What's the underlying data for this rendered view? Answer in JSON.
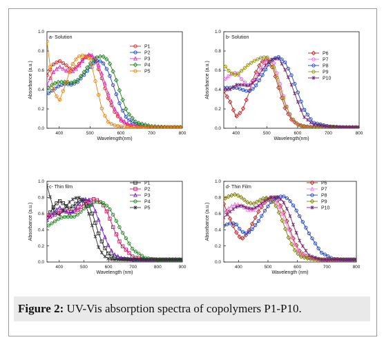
{
  "caption": {
    "label": "Figure 2:",
    "text": " UV-Vis absorption spectra of copolymers P1-P10."
  },
  "chart_data": [
    {
      "type": "line",
      "title": "a- Solution",
      "xlabel": "Wavelength(nm)",
      "ylabel": "Absorbance (a.u.)",
      "xlim": [
        360,
        800
      ],
      "ylim": [
        0,
        1.0
      ],
      "xticks": [
        "400",
        "500",
        "600",
        "700",
        "800"
      ],
      "yticks": [
        "0.0",
        "0.2",
        "0.4",
        "0.6",
        "0.8",
        "1.0"
      ],
      "series": [
        {
          "name": "P1",
          "color": "#d42020",
          "marker": "circle",
          "x": [
            360,
            380,
            400,
            420,
            440,
            460,
            480,
            500,
            520,
            540,
            560,
            580,
            600,
            620,
            650,
            700,
            750,
            800
          ],
          "y": [
            0.55,
            0.66,
            0.7,
            0.66,
            0.6,
            0.65,
            0.73,
            0.76,
            0.68,
            0.5,
            0.3,
            0.17,
            0.08,
            0.04,
            0.02,
            0.01,
            0.01,
            0.01
          ]
        },
        {
          "name": "P2",
          "color": "#1a3fc0",
          "marker": "circle",
          "x": [
            360,
            380,
            400,
            420,
            440,
            460,
            480,
            500,
            520,
            540,
            560,
            580,
            600,
            620,
            650,
            700,
            750,
            800
          ],
          "y": [
            0.35,
            0.4,
            0.44,
            0.46,
            0.45,
            0.48,
            0.55,
            0.63,
            0.7,
            0.69,
            0.58,
            0.4,
            0.22,
            0.1,
            0.04,
            0.01,
            0.01,
            0.01
          ]
        },
        {
          "name": "P3",
          "color": "#e030c0",
          "marker": "triangle",
          "x": [
            360,
            380,
            400,
            420,
            440,
            460,
            480,
            500,
            520,
            540,
            560,
            580,
            600,
            620,
            650,
            700,
            750,
            800
          ],
          "y": [
            0.45,
            0.58,
            0.64,
            0.6,
            0.58,
            0.63,
            0.72,
            0.77,
            0.72,
            0.55,
            0.35,
            0.2,
            0.1,
            0.05,
            0.02,
            0.01,
            0.01,
            0.01
          ]
        },
        {
          "name": "P4",
          "color": "#208020",
          "marker": "diamond",
          "x": [
            360,
            380,
            400,
            420,
            440,
            460,
            480,
            500,
            520,
            540,
            560,
            580,
            600,
            620,
            650,
            700,
            750,
            800
          ],
          "y": [
            0.4,
            0.46,
            0.48,
            0.48,
            0.47,
            0.5,
            0.58,
            0.67,
            0.73,
            0.75,
            0.7,
            0.55,
            0.35,
            0.17,
            0.06,
            0.02,
            0.01,
            0.01
          ]
        },
        {
          "name": "P5",
          "color": "#f08000",
          "marker": "circle",
          "x": [
            360,
            380,
            400,
            420,
            440,
            460,
            480,
            500,
            520,
            540,
            560,
            580,
            600,
            620,
            650,
            700,
            750,
            800
          ],
          "y": [
            0.9,
            0.4,
            0.28,
            0.45,
            0.65,
            0.74,
            0.76,
            0.72,
            0.45,
            0.18,
            0.06,
            0.03,
            0.02,
            0.01,
            0.01,
            0.01,
            0.01,
            0.01
          ]
        }
      ]
    },
    {
      "type": "line",
      "title": "b- Solution",
      "xlabel": "Wavelength(nm)",
      "ylabel": "Absorbance (a.u.)",
      "xlim": [
        360,
        800
      ],
      "ylim": [
        0,
        1.0
      ],
      "xticks": [
        "400",
        "500",
        "600",
        "700",
        "800"
      ],
      "yticks": [
        "0.0",
        "0.2",
        "0.4",
        "0.6",
        "0.8",
        "1.0"
      ],
      "series": [
        {
          "name": "P6",
          "color": "#c02020",
          "marker": "diamond",
          "x": [
            360,
            380,
            400,
            420,
            440,
            460,
            480,
            500,
            520,
            540,
            560,
            580,
            600,
            620,
            650,
            700,
            750,
            800
          ],
          "y": [
            0.38,
            0.28,
            0.12,
            0.18,
            0.35,
            0.55,
            0.68,
            0.72,
            0.62,
            0.4,
            0.2,
            0.09,
            0.04,
            0.02,
            0.01,
            0.01,
            0.01,
            0.01
          ]
        },
        {
          "name": "P7",
          "color": "#f060e0",
          "marker": "circle",
          "x": [
            360,
            380,
            400,
            420,
            440,
            460,
            480,
            500,
            520,
            540,
            560,
            580,
            600,
            620,
            650,
            700,
            750,
            800
          ],
          "y": [
            0.5,
            0.55,
            0.58,
            0.5,
            0.44,
            0.5,
            0.62,
            0.72,
            0.7,
            0.5,
            0.26,
            0.1,
            0.04,
            0.02,
            0.01,
            0.01,
            0.01,
            0.01
          ]
        },
        {
          "name": "P8",
          "color": "#1a3fc0",
          "marker": "circle",
          "x": [
            360,
            380,
            400,
            420,
            440,
            460,
            480,
            500,
            520,
            540,
            560,
            580,
            600,
            620,
            650,
            700,
            750,
            800
          ],
          "y": [
            0.42,
            0.42,
            0.42,
            0.4,
            0.38,
            0.42,
            0.52,
            0.63,
            0.72,
            0.74,
            0.68,
            0.55,
            0.38,
            0.2,
            0.06,
            0.02,
            0.01,
            0.01
          ]
        },
        {
          "name": "P9",
          "color": "#909000",
          "marker": "circle",
          "x": [
            360,
            380,
            400,
            420,
            440,
            460,
            480,
            500,
            520,
            540,
            560,
            580,
            600,
            620,
            650,
            700,
            750,
            800
          ],
          "y": [
            0.66,
            0.58,
            0.55,
            0.6,
            0.66,
            0.7,
            0.73,
            0.74,
            0.66,
            0.45,
            0.25,
            0.11,
            0.04,
            0.02,
            0.01,
            0.01,
            0.01,
            0.01
          ]
        },
        {
          "name": "P10",
          "color": "#702070",
          "marker": "star",
          "x": [
            360,
            380,
            400,
            420,
            440,
            460,
            480,
            500,
            520,
            540,
            560,
            580,
            600,
            620,
            650,
            700,
            750,
            800
          ],
          "y": [
            0.4,
            0.4,
            0.45,
            0.45,
            0.44,
            0.48,
            0.58,
            0.67,
            0.72,
            0.72,
            0.6,
            0.45,
            0.28,
            0.12,
            0.04,
            0.02,
            0.01,
            0.01
          ]
        }
      ]
    },
    {
      "type": "line",
      "title": "c- Thin film",
      "xlabel": "Wavelength (nm)",
      "ylabel": "Absorbance (a.u.)",
      "xlim": [
        350,
        900
      ],
      "ylim": [
        0,
        1.0
      ],
      "xticks": [
        "400",
        "500",
        "600",
        "700",
        "800",
        "900"
      ],
      "yticks": [
        "0.0",
        "0.2",
        "0.4",
        "0.6",
        "0.8",
        "1.0"
      ],
      "series": [
        {
          "name": "P1",
          "color": "#222222",
          "marker": "square",
          "x": [
            350,
            380,
            400,
            420,
            440,
            460,
            480,
            500,
            520,
            540,
            560,
            580,
            600,
            620,
            650,
            700,
            750,
            800,
            850,
            900
          ],
          "y": [
            0.55,
            0.7,
            0.76,
            0.72,
            0.66,
            0.7,
            0.76,
            0.78,
            0.7,
            0.55,
            0.35,
            0.2,
            0.1,
            0.06,
            0.04,
            0.03,
            0.03,
            0.03,
            0.03,
            0.03
          ]
        },
        {
          "name": "P2",
          "color": "#d01060",
          "marker": "square",
          "x": [
            350,
            380,
            400,
            420,
            440,
            460,
            480,
            500,
            520,
            540,
            560,
            580,
            600,
            620,
            650,
            700,
            750,
            800,
            850,
            900
          ],
          "y": [
            0.58,
            0.58,
            0.62,
            0.64,
            0.62,
            0.62,
            0.66,
            0.72,
            0.76,
            0.78,
            0.76,
            0.7,
            0.58,
            0.42,
            0.22,
            0.06,
            0.03,
            0.03,
            0.03,
            0.03
          ]
        },
        {
          "name": "P3",
          "color": "#7020c0",
          "marker": "triangle",
          "x": [
            350,
            380,
            400,
            420,
            440,
            460,
            480,
            500,
            520,
            540,
            560,
            580,
            600,
            620,
            650,
            700,
            750,
            800,
            850,
            900
          ],
          "y": [
            0.52,
            0.62,
            0.68,
            0.64,
            0.6,
            0.64,
            0.72,
            0.78,
            0.77,
            0.68,
            0.52,
            0.35,
            0.2,
            0.1,
            0.05,
            0.03,
            0.03,
            0.03,
            0.03,
            0.03
          ]
        },
        {
          "name": "P4",
          "color": "#208020",
          "marker": "circle",
          "x": [
            350,
            380,
            400,
            420,
            440,
            460,
            480,
            500,
            520,
            540,
            560,
            580,
            600,
            620,
            650,
            700,
            750,
            800,
            850,
            900
          ],
          "y": [
            0.44,
            0.5,
            0.54,
            0.56,
            0.56,
            0.56,
            0.6,
            0.66,
            0.7,
            0.74,
            0.75,
            0.73,
            0.68,
            0.58,
            0.4,
            0.15,
            0.05,
            0.03,
            0.03,
            0.03
          ]
        },
        {
          "name": "P5",
          "color": "#303030",
          "marker": "star",
          "x": [
            350,
            380,
            400,
            420,
            440,
            460,
            480,
            500,
            520,
            540,
            560,
            580,
            600,
            620,
            650,
            700,
            750,
            800,
            850,
            900
          ],
          "y": [
            0.95,
            0.62,
            0.58,
            0.65,
            0.74,
            0.79,
            0.8,
            0.75,
            0.6,
            0.38,
            0.18,
            0.08,
            0.04,
            0.03,
            0.03,
            0.03,
            0.03,
            0.03,
            0.03,
            0.03
          ]
        }
      ]
    },
    {
      "type": "line",
      "title": "d- Thin Film",
      "xlabel": "Wavelength (nm)",
      "ylabel": "Absorbance (a.u.)",
      "xlim": [
        350,
        800
      ],
      "ylim": [
        0,
        1.0
      ],
      "xticks": [
        "400",
        "500",
        "600",
        "700",
        "800"
      ],
      "yticks": [
        "0.0",
        "0.2",
        "0.4",
        "0.6",
        "0.8",
        "1.0"
      ],
      "series": [
        {
          "name": "P6",
          "color": "#c02020",
          "marker": "diamond",
          "x": [
            350,
            370,
            390,
            410,
            430,
            450,
            470,
            490,
            510,
            530,
            550,
            570,
            590,
            610,
            640,
            680,
            720,
            760,
            800
          ],
          "y": [
            0.72,
            0.55,
            0.38,
            0.28,
            0.35,
            0.5,
            0.64,
            0.74,
            0.8,
            0.78,
            0.65,
            0.45,
            0.25,
            0.12,
            0.05,
            0.03,
            0.03,
            0.03,
            0.03
          ]
        },
        {
          "name": "P7",
          "color": "#f080e0",
          "marker": "triangle",
          "x": [
            350,
            370,
            390,
            410,
            430,
            450,
            470,
            490,
            510,
            530,
            550,
            570,
            590,
            610,
            640,
            680,
            720,
            760,
            800
          ],
          "y": [
            0.6,
            0.68,
            0.72,
            0.7,
            0.65,
            0.64,
            0.7,
            0.78,
            0.8,
            0.74,
            0.58,
            0.4,
            0.22,
            0.1,
            0.05,
            0.03,
            0.03,
            0.03,
            0.03
          ]
        },
        {
          "name": "P8",
          "color": "#1a3fc0",
          "marker": "circle",
          "x": [
            350,
            370,
            390,
            410,
            430,
            450,
            470,
            490,
            510,
            530,
            550,
            570,
            590,
            610,
            640,
            680,
            720,
            760,
            800
          ],
          "y": [
            0.45,
            0.48,
            0.48,
            0.38,
            0.35,
            0.42,
            0.52,
            0.64,
            0.74,
            0.8,
            0.82,
            0.78,
            0.68,
            0.55,
            0.35,
            0.12,
            0.04,
            0.03,
            0.03
          ]
        },
        {
          "name": "P9",
          "color": "#808000",
          "marker": "diamond",
          "x": [
            350,
            370,
            390,
            410,
            430,
            450,
            470,
            490,
            510,
            530,
            550,
            570,
            590,
            610,
            640,
            680,
            720,
            760,
            800
          ],
          "y": [
            0.78,
            0.82,
            0.84,
            0.8,
            0.74,
            0.72,
            0.76,
            0.8,
            0.78,
            0.68,
            0.5,
            0.3,
            0.15,
            0.07,
            0.04,
            0.03,
            0.03,
            0.03,
            0.03
          ]
        },
        {
          "name": "P10",
          "color": "#702070",
          "marker": "star",
          "x": [
            350,
            370,
            390,
            410,
            430,
            450,
            470,
            490,
            510,
            530,
            550,
            570,
            590,
            610,
            640,
            680,
            720,
            760,
            800
          ],
          "y": [
            0.55,
            0.62,
            0.68,
            0.7,
            0.67,
            0.66,
            0.7,
            0.76,
            0.8,
            0.81,
            0.76,
            0.62,
            0.42,
            0.24,
            0.08,
            0.03,
            0.03,
            0.03,
            0.03
          ]
        }
      ]
    }
  ]
}
